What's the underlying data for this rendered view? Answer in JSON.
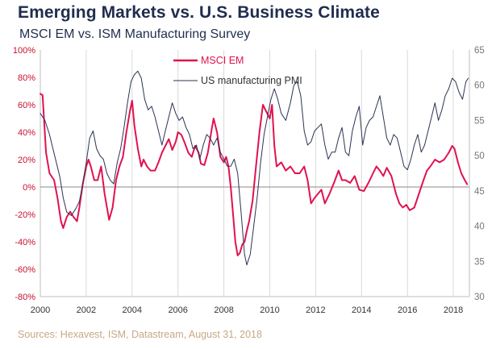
{
  "title": "Emerging Markets vs. U.S. Business Climate",
  "subtitle": "MSCI EM vs. ISM Manufacturing Survey",
  "source": "Sources: Hexavest, ISM, Datastream, August 31, 2018",
  "colors": {
    "em": "#e0124f",
    "pmi": "#2a3352",
    "title": "#1f2d4e",
    "left_axis": "#c8102e",
    "source": "#c7a985"
  },
  "chart_data": {
    "type": "line",
    "title": "Emerging Markets vs. U.S. Business Climate",
    "subtitle": "MSCI EM vs. ISM Manufacturing Survey",
    "xlim": [
      2000,
      2018.7
    ],
    "x_ticks": [
      "2000",
      "2002",
      "2004",
      "2006",
      "2008",
      "2010",
      "2012",
      "2014",
      "2016",
      "2018"
    ],
    "y_left": {
      "min": -80,
      "max": 100,
      "step": 20,
      "ticks": [
        "100%",
        "80%",
        "60%",
        "40%",
        "20%",
        "0%",
        "-20%",
        "-40%",
        "-60%",
        "-80%"
      ]
    },
    "y_right": {
      "min": 30,
      "max": 65,
      "step": 5,
      "ticks": [
        "65",
        "60",
        "55",
        "50",
        "45",
        "40",
        "35",
        "30"
      ]
    },
    "legend_position": "top-center",
    "series": [
      {
        "name": "MSCI EM",
        "axis": "left",
        "color": "#e0124f",
        "points": [
          [
            2000.0,
            68
          ],
          [
            2000.1,
            67
          ],
          [
            2000.25,
            25
          ],
          [
            2000.4,
            10
          ],
          [
            2000.6,
            5
          ],
          [
            2000.75,
            -8
          ],
          [
            2000.9,
            -25
          ],
          [
            2001.0,
            -30
          ],
          [
            2001.15,
            -22
          ],
          [
            2001.3,
            -18
          ],
          [
            2001.45,
            -22
          ],
          [
            2001.6,
            -25
          ],
          [
            2001.7,
            -15
          ],
          [
            2001.85,
            2
          ],
          [
            2002.0,
            15
          ],
          [
            2002.1,
            20
          ],
          [
            2002.2,
            15
          ],
          [
            2002.35,
            5
          ],
          [
            2002.5,
            5
          ],
          [
            2002.65,
            15
          ],
          [
            2002.8,
            -5
          ],
          [
            2003.0,
            -24
          ],
          [
            2003.15,
            -15
          ],
          [
            2003.3,
            5
          ],
          [
            2003.45,
            15
          ],
          [
            2003.6,
            22
          ],
          [
            2003.75,
            40
          ],
          [
            2003.9,
            55
          ],
          [
            2004.0,
            63
          ],
          [
            2004.1,
            45
          ],
          [
            2004.25,
            28
          ],
          [
            2004.4,
            15
          ],
          [
            2004.5,
            20
          ],
          [
            2004.65,
            15
          ],
          [
            2004.8,
            12
          ],
          [
            2005.0,
            12
          ],
          [
            2005.15,
            18
          ],
          [
            2005.3,
            25
          ],
          [
            2005.45,
            30
          ],
          [
            2005.6,
            35
          ],
          [
            2005.75,
            27
          ],
          [
            2005.9,
            33
          ],
          [
            2006.0,
            40
          ],
          [
            2006.15,
            38
          ],
          [
            2006.3,
            32
          ],
          [
            2006.45,
            25
          ],
          [
            2006.6,
            22
          ],
          [
            2006.75,
            30
          ],
          [
            2006.9,
            25
          ],
          [
            2007.0,
            17
          ],
          [
            2007.15,
            16
          ],
          [
            2007.3,
            25
          ],
          [
            2007.45,
            40
          ],
          [
            2007.55,
            50
          ],
          [
            2007.7,
            40
          ],
          [
            2007.85,
            22
          ],
          [
            2008.0,
            18
          ],
          [
            2008.1,
            22
          ],
          [
            2008.2,
            15
          ],
          [
            2008.3,
            0
          ],
          [
            2008.4,
            -20
          ],
          [
            2008.5,
            -40
          ],
          [
            2008.6,
            -50
          ],
          [
            2008.7,
            -48
          ],
          [
            2008.8,
            -42
          ],
          [
            2008.9,
            -40
          ],
          [
            2009.0,
            -32
          ],
          [
            2009.1,
            -25
          ],
          [
            2009.25,
            -10
          ],
          [
            2009.4,
            15
          ],
          [
            2009.55,
            40
          ],
          [
            2009.7,
            60
          ],
          [
            2009.85,
            55
          ],
          [
            2010.0,
            50
          ],
          [
            2010.1,
            60
          ],
          [
            2010.2,
            30
          ],
          [
            2010.3,
            15
          ],
          [
            2010.5,
            18
          ],
          [
            2010.7,
            12
          ],
          [
            2010.9,
            15
          ],
          [
            2011.1,
            10
          ],
          [
            2011.3,
            10
          ],
          [
            2011.5,
            15
          ],
          [
            2011.65,
            5
          ],
          [
            2011.8,
            -12
          ],
          [
            2011.95,
            -8
          ],
          [
            2012.1,
            -5
          ],
          [
            2012.25,
            -2
          ],
          [
            2012.4,
            -12
          ],
          [
            2012.6,
            -5
          ],
          [
            2012.8,
            3
          ],
          [
            2013.0,
            12
          ],
          [
            2013.15,
            5
          ],
          [
            2013.3,
            5
          ],
          [
            2013.5,
            3
          ],
          [
            2013.7,
            8
          ],
          [
            2013.9,
            -2
          ],
          [
            2014.1,
            -3
          ],
          [
            2014.3,
            3
          ],
          [
            2014.5,
            10
          ],
          [
            2014.65,
            15
          ],
          [
            2014.8,
            12
          ],
          [
            2014.95,
            8
          ],
          [
            2015.1,
            14
          ],
          [
            2015.3,
            8
          ],
          [
            2015.5,
            -5
          ],
          [
            2015.65,
            -12
          ],
          [
            2015.8,
            -15
          ],
          [
            2015.95,
            -13
          ],
          [
            2016.1,
            -17
          ],
          [
            2016.3,
            -15
          ],
          [
            2016.5,
            -5
          ],
          [
            2016.7,
            5
          ],
          [
            2016.85,
            12
          ],
          [
            2017.0,
            15
          ],
          [
            2017.2,
            20
          ],
          [
            2017.4,
            18
          ],
          [
            2017.6,
            20
          ],
          [
            2017.8,
            25
          ],
          [
            2017.95,
            30
          ],
          [
            2018.05,
            28
          ],
          [
            2018.2,
            18
          ],
          [
            2018.35,
            10
          ],
          [
            2018.5,
            5
          ],
          [
            2018.6,
            2
          ]
        ]
      },
      {
        "name": "US manufacturing PMI",
        "axis": "right",
        "color": "#2a3352",
        "points": [
          [
            2000.0,
            56
          ],
          [
            2000.2,
            55
          ],
          [
            2000.4,
            53
          ],
          [
            2000.55,
            51
          ],
          [
            2000.7,
            49
          ],
          [
            2000.85,
            47
          ],
          [
            2001.0,
            44
          ],
          [
            2001.15,
            42
          ],
          [
            2001.35,
            41.5
          ],
          [
            2001.55,
            42.5
          ],
          [
            2001.7,
            43.5
          ],
          [
            2001.85,
            46
          ],
          [
            2002.0,
            49
          ],
          [
            2002.15,
            52.5
          ],
          [
            2002.3,
            53.5
          ],
          [
            2002.45,
            51
          ],
          [
            2002.6,
            50
          ],
          [
            2002.75,
            49.5
          ],
          [
            2002.9,
            47.5
          ],
          [
            2003.05,
            46.5
          ],
          [
            2003.2,
            46
          ],
          [
            2003.35,
            49
          ],
          [
            2003.5,
            51
          ],
          [
            2003.65,
            54
          ],
          [
            2003.8,
            57.5
          ],
          [
            2003.95,
            60.5
          ],
          [
            2004.1,
            61.5
          ],
          [
            2004.25,
            62
          ],
          [
            2004.4,
            61
          ],
          [
            2004.55,
            58
          ],
          [
            2004.7,
            56.5
          ],
          [
            2004.85,
            57
          ],
          [
            2005.0,
            55.5
          ],
          [
            2005.15,
            53.5
          ],
          [
            2005.3,
            51.5
          ],
          [
            2005.45,
            53.5
          ],
          [
            2005.6,
            55.5
          ],
          [
            2005.75,
            57.5
          ],
          [
            2005.9,
            56
          ],
          [
            2006.05,
            55
          ],
          [
            2006.2,
            55.5
          ],
          [
            2006.35,
            54
          ],
          [
            2006.5,
            53
          ],
          [
            2006.65,
            51
          ],
          [
            2006.8,
            51.5
          ],
          [
            2006.95,
            49.5
          ],
          [
            2007.1,
            51.5
          ],
          [
            2007.25,
            53
          ],
          [
            2007.4,
            52.5
          ],
          [
            2007.55,
            51.5
          ],
          [
            2007.7,
            52.5
          ],
          [
            2007.85,
            50.5
          ],
          [
            2008.0,
            49.5
          ],
          [
            2008.15,
            48.5
          ],
          [
            2008.3,
            48.5
          ],
          [
            2008.45,
            49.5
          ],
          [
            2008.6,
            47.5
          ],
          [
            2008.75,
            42
          ],
          [
            2008.9,
            36
          ],
          [
            2009.0,
            34.5
          ],
          [
            2009.15,
            36
          ],
          [
            2009.3,
            40
          ],
          [
            2009.45,
            44
          ],
          [
            2009.6,
            49
          ],
          [
            2009.75,
            53
          ],
          [
            2009.9,
            55.5
          ],
          [
            2010.05,
            58
          ],
          [
            2010.2,
            59.5
          ],
          [
            2010.35,
            58
          ],
          [
            2010.5,
            56
          ],
          [
            2010.7,
            55
          ],
          [
            2010.9,
            57.5
          ],
          [
            2011.05,
            60
          ],
          [
            2011.2,
            60.5
          ],
          [
            2011.35,
            58.5
          ],
          [
            2011.5,
            53.5
          ],
          [
            2011.65,
            51.5
          ],
          [
            2011.8,
            52
          ],
          [
            2011.95,
            53.5
          ],
          [
            2012.1,
            54
          ],
          [
            2012.25,
            54.5
          ],
          [
            2012.4,
            51.5
          ],
          [
            2012.55,
            49.5
          ],
          [
            2012.7,
            50.5
          ],
          [
            2012.85,
            50.5
          ],
          [
            2013.0,
            52.5
          ],
          [
            2013.15,
            54
          ],
          [
            2013.3,
            50.5
          ],
          [
            2013.45,
            50
          ],
          [
            2013.6,
            53.5
          ],
          [
            2013.75,
            55.5
          ],
          [
            2013.9,
            57
          ],
          [
            2014.05,
            51.5
          ],
          [
            2014.2,
            54
          ],
          [
            2014.35,
            55
          ],
          [
            2014.5,
            55.5
          ],
          [
            2014.65,
            57
          ],
          [
            2014.8,
            58.5
          ],
          [
            2014.95,
            55.5
          ],
          [
            2015.1,
            52.5
          ],
          [
            2015.25,
            51.5
          ],
          [
            2015.4,
            53
          ],
          [
            2015.55,
            52.5
          ],
          [
            2015.7,
            50.5
          ],
          [
            2015.85,
            48.5
          ],
          [
            2016.0,
            48
          ],
          [
            2016.15,
            49.5
          ],
          [
            2016.3,
            51.5
          ],
          [
            2016.45,
            53
          ],
          [
            2016.6,
            50.5
          ],
          [
            2016.75,
            51.5
          ],
          [
            2016.9,
            53.5
          ],
          [
            2017.05,
            55.5
          ],
          [
            2017.2,
            57.5
          ],
          [
            2017.35,
            55
          ],
          [
            2017.5,
            56.5
          ],
          [
            2017.65,
            58.5
          ],
          [
            2017.8,
            59.5
          ],
          [
            2017.95,
            61
          ],
          [
            2018.1,
            60.5
          ],
          [
            2018.25,
            59
          ],
          [
            2018.4,
            58
          ],
          [
            2018.55,
            60.5
          ],
          [
            2018.65,
            61
          ]
        ]
      }
    ]
  }
}
